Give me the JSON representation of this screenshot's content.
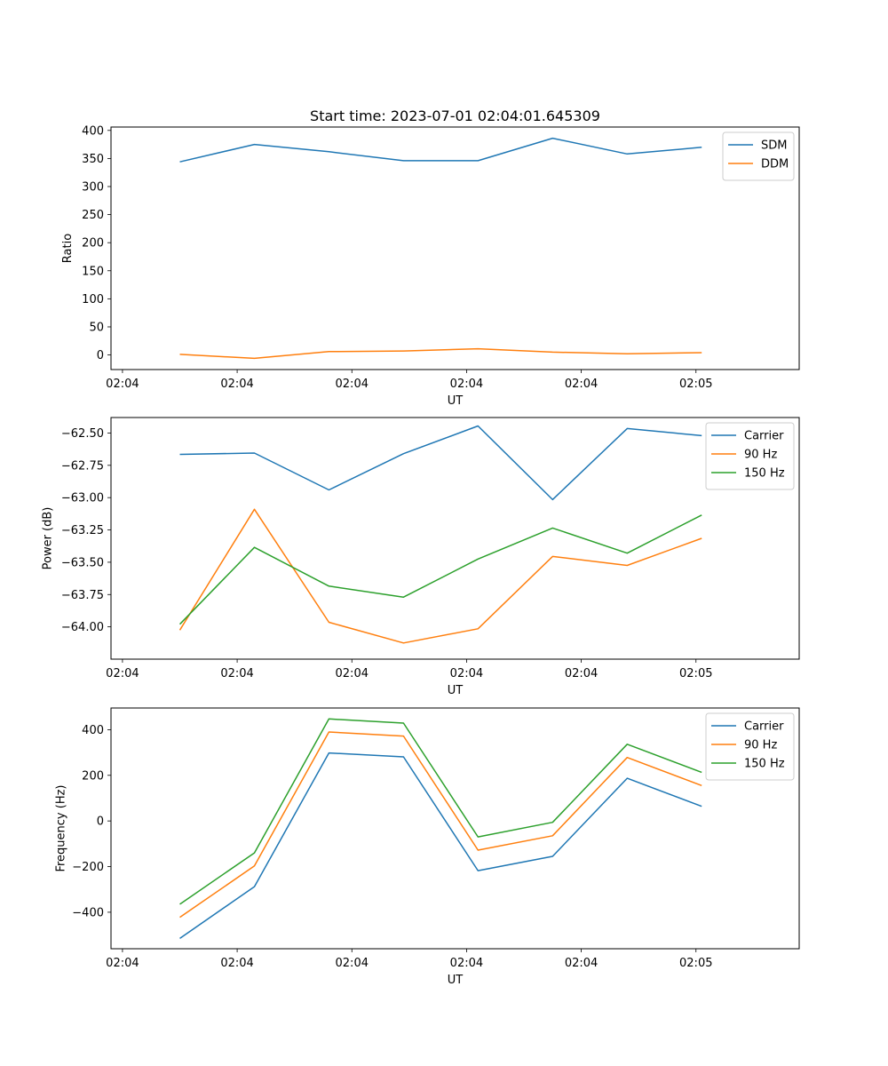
{
  "chart_data": [
    {
      "type": "line",
      "title": "Start time: 2023-07-01 02:04:01.645309",
      "xlabel": "UT",
      "ylabel": "Ratio",
      "x": [
        0.5,
        1.15,
        1.8,
        2.45,
        3.1,
        3.75,
        4.4,
        5.05
      ],
      "xlim": [
        -0.1,
        5.9
      ],
      "xticks": [
        0,
        1,
        2,
        3,
        4,
        5
      ],
      "xtick_labels": [
        "02:04",
        "02:04",
        "02:04",
        "02:04",
        "02:04",
        "02:05"
      ],
      "ylim": [
        -26,
        406
      ],
      "yticks": [
        0,
        50,
        100,
        150,
        200,
        250,
        300,
        350,
        400
      ],
      "ytick_labels": [
        "0",
        "50",
        "100",
        "150",
        "200",
        "250",
        "300",
        "350",
        "400"
      ],
      "legend_position": "top-right",
      "series": [
        {
          "name": "SDM",
          "color": "#1f77b4",
          "values": [
            344,
            375,
            362,
            346,
            346,
            386,
            358,
            370
          ]
        },
        {
          "name": "DDM",
          "color": "#ff7f0e",
          "values": [
            1,
            -6,
            6,
            7,
            11,
            5,
            2,
            4
          ]
        }
      ]
    },
    {
      "type": "line",
      "title": "",
      "xlabel": "UT",
      "ylabel": "Power (dB)",
      "x": [
        0.5,
        1.15,
        1.8,
        2.45,
        3.1,
        3.75,
        4.4,
        5.05
      ],
      "xlim": [
        -0.1,
        5.9
      ],
      "xticks": [
        0,
        1,
        2,
        3,
        4,
        5
      ],
      "xtick_labels": [
        "02:04",
        "02:04",
        "02:04",
        "02:04",
        "02:04",
        "02:05"
      ],
      "ylim": [
        -64.25,
        -62.38
      ],
      "yticks": [
        -64.0,
        -63.75,
        -63.5,
        -63.25,
        -63.0,
        -62.75,
        -62.5
      ],
      "ytick_labels": [
        "−64.00",
        "−63.75",
        "−63.50",
        "−63.25",
        "−63.00",
        "−62.75",
        "−62.50"
      ],
      "legend_position": "top-right",
      "series": [
        {
          "name": "Carrier",
          "color": "#1f77b4",
          "values": [
            -62.665,
            -62.655,
            -62.94,
            -62.66,
            -62.445,
            -63.015,
            -62.465,
            -62.52
          ]
        },
        {
          "name": "90 Hz",
          "color": "#ff7f0e",
          "values": [
            -64.025,
            -63.09,
            -63.965,
            -64.125,
            -64.015,
            -63.455,
            -63.525,
            -63.315
          ]
        },
        {
          "name": "150 Hz",
          "color": "#2ca02c",
          "values": [
            -63.98,
            -63.385,
            -63.685,
            -63.77,
            -63.475,
            -63.235,
            -63.43,
            -63.135
          ]
        }
      ]
    },
    {
      "type": "line",
      "title": "",
      "xlabel": "UT",
      "ylabel": "Frequency (Hz)",
      "x": [
        0.5,
        1.15,
        1.8,
        2.45,
        3.1,
        3.75,
        4.4,
        5.05
      ],
      "xlim": [
        -0.1,
        5.9
      ],
      "xticks": [
        0,
        1,
        2,
        3,
        4,
        5
      ],
      "xtick_labels": [
        "02:04",
        "02:04",
        "02:04",
        "02:04",
        "02:04",
        "02:05"
      ],
      "ylim": [
        -560,
        495
      ],
      "yticks": [
        -400,
        -200,
        0,
        200,
        400
      ],
      "ytick_labels": [
        "−400",
        "−200",
        "0",
        "200",
        "400"
      ],
      "legend_position": "top-right",
      "series": [
        {
          "name": "Carrier",
          "color": "#1f77b4",
          "values": [
            -515,
            -288,
            298,
            281,
            -218,
            -155,
            187,
            64
          ]
        },
        {
          "name": "90 Hz",
          "color": "#ff7f0e",
          "values": [
            -422,
            -197,
            390,
            372,
            -128,
            -65,
            278,
            155
          ]
        },
        {
          "name": "150 Hz",
          "color": "#2ca02c",
          "values": [
            -365,
            -140,
            447,
            429,
            -70,
            -6,
            336,
            213
          ]
        }
      ]
    }
  ]
}
